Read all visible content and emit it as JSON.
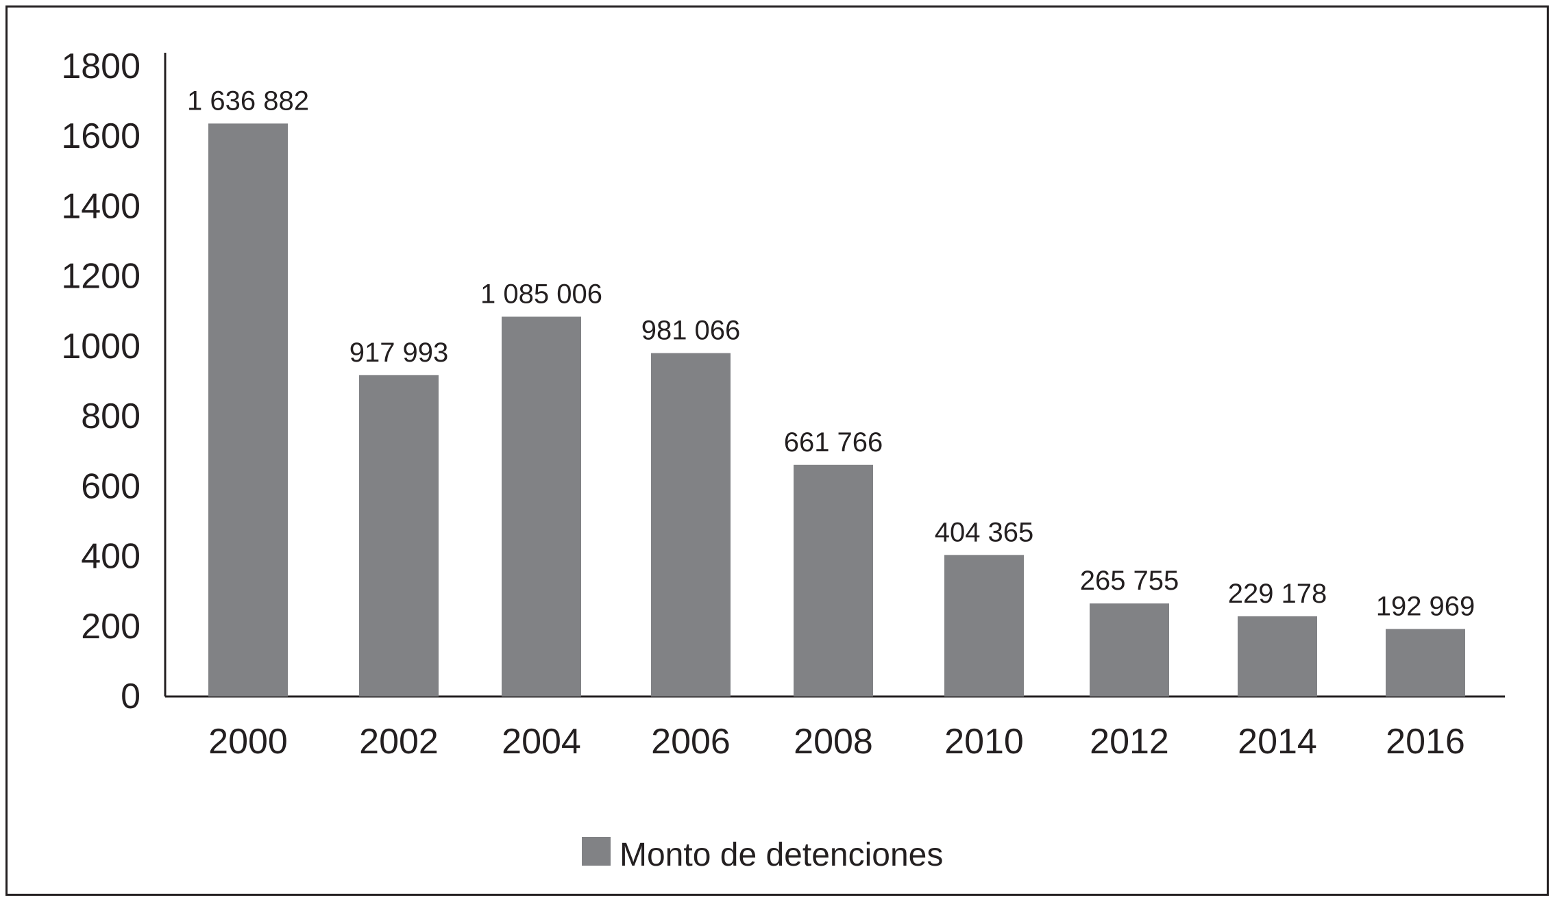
{
  "chart_data": {
    "type": "bar",
    "title": "",
    "xlabel": "",
    "ylabel": "",
    "ylim": [
      0,
      1800
    ],
    "yticks": [
      "0",
      "200",
      "400",
      "600",
      "800",
      "1000",
      "1200",
      "1400",
      "1600",
      "1800"
    ],
    "categories": [
      "2000",
      "2002",
      "2004",
      "2006",
      "2008",
      "2010",
      "2012",
      "2014",
      "2016"
    ],
    "series": [
      {
        "name": "Monto de detenciones",
        "values": [
          1636.882,
          917.993,
          1085.006,
          981.066,
          661.766,
          404.365,
          265.755,
          229.178,
          192.969
        ],
        "data_labels": [
          "1 636 882",
          "917 993",
          "1 085 006",
          "981 066",
          "661 766",
          "404 365",
          "265 755",
          "229 178",
          "192 969"
        ],
        "color": "#818285"
      }
    ],
    "grid": false,
    "legend": "bottom-center"
  }
}
